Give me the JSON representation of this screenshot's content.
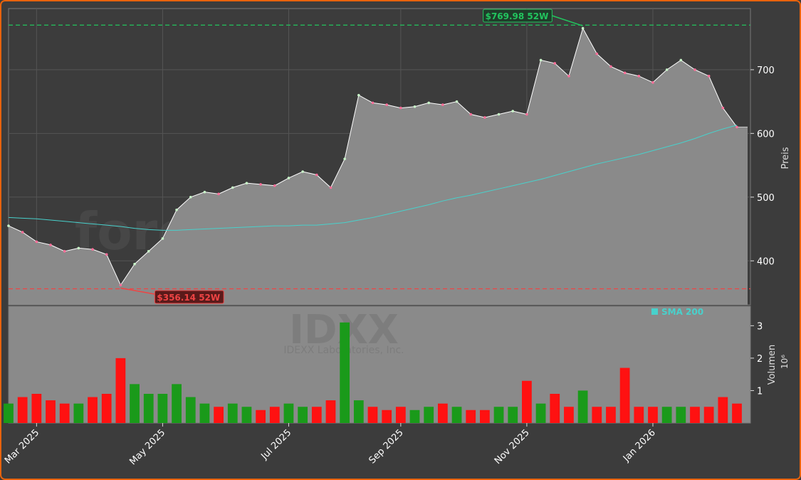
{
  "chart_data": [
    {
      "type": "line",
      "watermark": "forexsignale.trade",
      "ylabel": "Preis",
      "categories": [
        null,
        null,
        "Mar 2025",
        null,
        null,
        null,
        null,
        null,
        null,
        null,
        null,
        "May 2025",
        null,
        null,
        null,
        null,
        null,
        null,
        null,
        null,
        "Jul 2025",
        null,
        null,
        null,
        null,
        null,
        null,
        null,
        "Sep 2025",
        null,
        null,
        null,
        null,
        null,
        null,
        null,
        null,
        "Nov 2025",
        null,
        null,
        null,
        null,
        null,
        null,
        null,
        null,
        "Jan 2026",
        null,
        null,
        null,
        null,
        null,
        null
      ],
      "series": [
        {
          "color": "#ffffff",
          "fill": "#8a8a8a",
          "values": [
            455,
            445,
            430,
            425,
            415,
            420,
            418,
            410,
            362,
            395,
            415,
            435,
            480,
            500,
            508,
            505,
            515,
            522,
            520,
            518,
            530,
            540,
            535,
            515,
            560,
            660,
            648,
            645,
            640,
            642,
            648,
            645,
            650,
            630,
            625,
            630,
            635,
            630,
            715,
            710,
            690,
            765,
            725,
            705,
            695,
            690,
            680,
            700,
            715,
            700,
            690,
            640,
            610
          ]
        },
        {
          "name": "SMA 200",
          "color": "#48d1cc",
          "values": [
            468,
            467,
            466,
            464,
            462,
            460,
            458,
            456,
            454,
            451,
            449,
            448,
            448,
            449,
            450,
            451,
            452,
            453,
            454,
            455,
            455,
            456,
            456,
            458,
            460,
            464,
            468,
            473,
            478,
            483,
            488,
            494,
            499,
            503,
            508,
            513,
            518,
            523,
            528,
            534,
            540,
            546,
            552,
            557,
            562,
            567,
            573,
            579,
            585,
            592,
            600,
            607,
            613
          ]
        }
      ],
      "ylim": [
        331,
        796
      ],
      "yticks": [
        400,
        500,
        600,
        700
      ],
      "grid": true,
      "annotations": [
        {
          "label": "$769.98 52W",
          "value": 769.98,
          "color": "#22c55e"
        },
        {
          "label": "$356.14 52W",
          "value": 356.14,
          "color": "#ef4444"
        }
      ]
    },
    {
      "type": "bar",
      "title": "IDXX",
      "subtitle": "IDEXX Laboratories, Inc.",
      "ylabel": "Volumen",
      "yunit": "10⁶",
      "values": [
        0.6,
        0.8,
        0.9,
        0.7,
        0.6,
        0.6,
        0.8,
        0.9,
        2.0,
        1.2,
        0.9,
        0.9,
        1.2,
        0.8,
        0.6,
        0.5,
        0.6,
        0.5,
        0.4,
        0.5,
        0.6,
        0.5,
        0.5,
        0.7,
        3.1,
        0.7,
        0.5,
        0.4,
        0.5,
        0.4,
        0.5,
        0.6,
        0.5,
        0.4,
        0.4,
        0.5,
        0.5,
        1.3,
        0.6,
        0.9,
        0.5,
        1.0,
        0.5,
        0.5,
        1.7,
        0.5,
        0.5,
        0.5,
        0.5,
        0.5,
        0.5,
        0.8,
        0.6
      ],
      "ylim": [
        0,
        3.6
      ],
      "yticks": [
        1,
        2,
        3
      ],
      "up_color": "#1a9a1a",
      "down_color": "#ff1111"
    }
  ]
}
